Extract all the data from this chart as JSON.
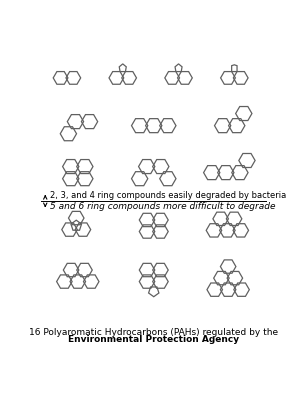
{
  "title_line1": "16 Polyaromatic Hydrocarbons (PAHs) regulated by the",
  "title_line2": "Environmental Protection Agency",
  "sep_text1": "2, 3, and 4 ring compounds easily degraded by bacteria",
  "sep_text2": "5 and 6 ring compounds more difficult to degrade",
  "bg_color": "#ffffff",
  "line_color": "#606060",
  "line_width": 0.9,
  "title_fontsize": 6.5,
  "sep_fontsize1": 6.0,
  "sep_fontsize2": 6.5,
  "figsize": [
    3.0,
    3.99
  ],
  "dpi": 100
}
